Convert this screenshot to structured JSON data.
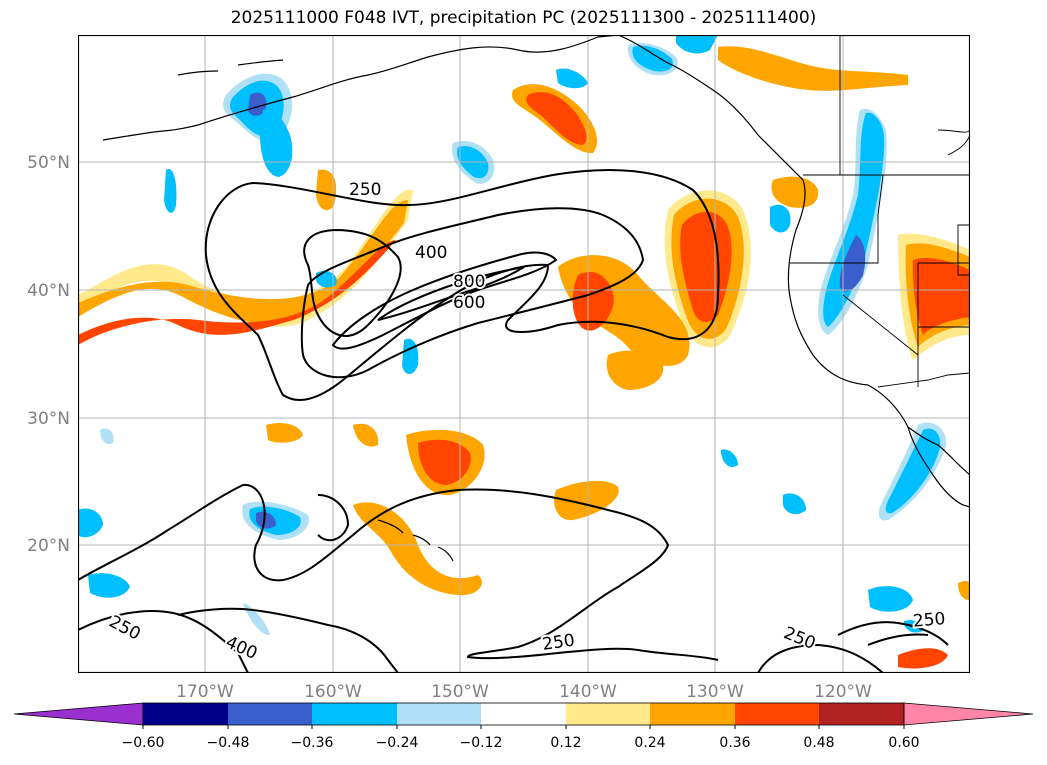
{
  "title": "2025111000 F048 IVT, precipitation PC (2025111300 - 2025111400)",
  "map": {
    "lat_labels": [
      "50°N",
      "40°N",
      "30°N",
      "20°N"
    ],
    "lon_labels": [
      "170°W",
      "160°W",
      "150°W",
      "140°W",
      "130°W",
      "120°W"
    ],
    "ivt_contour_labels": [
      "250",
      "400",
      "800",
      "600",
      "250",
      "400",
      "250",
      "250",
      "250"
    ]
  },
  "colorbar": {
    "ticks": [
      "−0.60",
      "−0.48",
      "−0.36",
      "−0.24",
      "−0.12",
      "0.12",
      "0.24",
      "0.36",
      "0.48",
      "0.60"
    ],
    "colors": [
      "#9b30d0",
      "#00008b",
      "#3a5fcd",
      "#00bfff",
      "#afe0f5",
      "#ffffff",
      "#ffe98a",
      "#ffa500",
      "#ff4500",
      "#b22222",
      "#ff85a8"
    ]
  }
}
